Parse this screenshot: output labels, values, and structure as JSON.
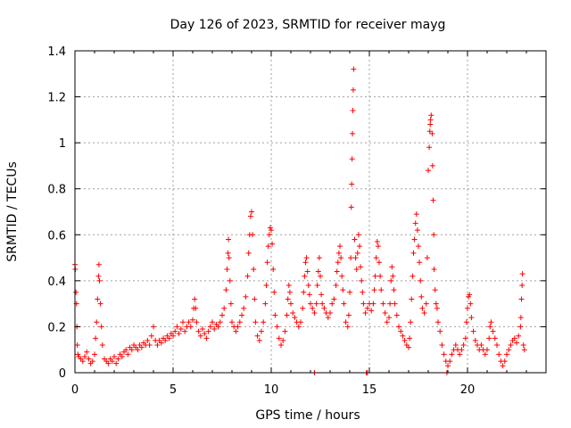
{
  "chart_data": {
    "type": "scatter",
    "title": "Day 126 of 2023, SRMTID for receiver mayg",
    "xlabel": "GPS time / hours",
    "ylabel": "SRMTID / TECUs",
    "xlim": [
      0,
      24
    ],
    "ylim": [
      0,
      1.4
    ],
    "xticks": [
      0,
      5,
      10,
      15,
      20
    ],
    "xtick_labels": [
      "0",
      "5",
      "10",
      "15",
      "20"
    ],
    "yticks": [
      0,
      0.2,
      0.4,
      0.6,
      0.8,
      1,
      1.2,
      1.4
    ],
    "ytick_labels": [
      "0",
      "0.2",
      "0.4",
      "0.6",
      "0.8",
      "1",
      "1.2",
      "1.4"
    ],
    "grid": true,
    "marker": "+",
    "color": "#ff0000",
    "series": [
      {
        "name": "SRMTID",
        "points": [
          [
            0.0,
            0.47
          ],
          [
            0.02,
            0.45
          ],
          [
            0.05,
            0.35
          ],
          [
            0.08,
            0.3
          ],
          [
            0.1,
            0.2
          ],
          [
            0.12,
            0.12
          ],
          [
            0.15,
            0.08
          ],
          [
            0.2,
            0.07
          ],
          [
            0.3,
            0.06
          ],
          [
            0.4,
            0.05
          ],
          [
            0.5,
            0.07
          ],
          [
            0.6,
            0.09
          ],
          [
            0.7,
            0.06
          ],
          [
            0.8,
            0.04
          ],
          [
            0.9,
            0.05
          ],
          [
            1.0,
            0.08
          ],
          [
            1.05,
            0.15
          ],
          [
            1.1,
            0.22
          ],
          [
            1.15,
            0.32
          ],
          [
            1.2,
            0.42
          ],
          [
            1.22,
            0.47
          ],
          [
            1.25,
            0.4
          ],
          [
            1.3,
            0.3
          ],
          [
            1.35,
            0.2
          ],
          [
            1.4,
            0.12
          ],
          [
            1.5,
            0.06
          ],
          [
            1.6,
            0.05
          ],
          [
            1.7,
            0.04
          ],
          [
            1.8,
            0.06
          ],
          [
            1.9,
            0.05
          ],
          [
            2.0,
            0.07
          ],
          [
            2.1,
            0.04
          ],
          [
            2.2,
            0.06
          ],
          [
            2.3,
            0.08
          ],
          [
            2.4,
            0.07
          ],
          [
            2.5,
            0.09
          ],
          [
            2.6,
            0.1
          ],
          [
            2.7,
            0.08
          ],
          [
            2.8,
            0.11
          ],
          [
            2.9,
            0.1
          ],
          [
            3.0,
            0.12
          ],
          [
            3.1,
            0.11
          ],
          [
            3.2,
            0.1
          ],
          [
            3.3,
            0.12
          ],
          [
            3.4,
            0.11
          ],
          [
            3.5,
            0.13
          ],
          [
            3.6,
            0.12
          ],
          [
            3.7,
            0.14
          ],
          [
            3.8,
            0.12
          ],
          [
            3.9,
            0.16
          ],
          [
            4.0,
            0.2
          ],
          [
            4.1,
            0.14
          ],
          [
            4.2,
            0.12
          ],
          [
            4.3,
            0.14
          ],
          [
            4.4,
            0.13
          ],
          [
            4.5,
            0.15
          ],
          [
            4.6,
            0.14
          ],
          [
            4.7,
            0.16
          ],
          [
            4.8,
            0.15
          ],
          [
            4.9,
            0.17
          ],
          [
            5.0,
            0.16
          ],
          [
            5.1,
            0.18
          ],
          [
            5.2,
            0.2
          ],
          [
            5.3,
            0.17
          ],
          [
            5.4,
            0.19
          ],
          [
            5.5,
            0.22
          ],
          [
            5.6,
            0.18
          ],
          [
            5.7,
            0.2
          ],
          [
            5.8,
            0.22
          ],
          [
            5.9,
            0.2
          ],
          [
            6.0,
            0.23
          ],
          [
            6.05,
            0.28
          ],
          [
            6.1,
            0.32
          ],
          [
            6.15,
            0.28
          ],
          [
            6.2,
            0.22
          ],
          [
            6.3,
            0.18
          ],
          [
            6.4,
            0.16
          ],
          [
            6.5,
            0.19
          ],
          [
            6.6,
            0.17
          ],
          [
            6.7,
            0.15
          ],
          [
            6.8,
            0.18
          ],
          [
            6.9,
            0.2
          ],
          [
            7.0,
            0.22
          ],
          [
            7.1,
            0.19
          ],
          [
            7.2,
            0.21
          ],
          [
            7.3,
            0.2
          ],
          [
            7.4,
            0.22
          ],
          [
            7.5,
            0.25
          ],
          [
            7.6,
            0.28
          ],
          [
            7.7,
            0.36
          ],
          [
            7.75,
            0.45
          ],
          [
            7.8,
            0.52
          ],
          [
            7.82,
            0.58
          ],
          [
            7.85,
            0.5
          ],
          [
            7.9,
            0.4
          ],
          [
            7.95,
            0.3
          ],
          [
            8.0,
            0.22
          ],
          [
            8.1,
            0.2
          ],
          [
            8.2,
            0.18
          ],
          [
            8.3,
            0.2
          ],
          [
            8.4,
            0.22
          ],
          [
            8.5,
            0.25
          ],
          [
            8.6,
            0.28
          ],
          [
            8.7,
            0.33
          ],
          [
            8.8,
            0.42
          ],
          [
            8.85,
            0.52
          ],
          [
            8.9,
            0.6
          ],
          [
            8.95,
            0.68
          ],
          [
            9.0,
            0.7
          ],
          [
            9.05,
            0.6
          ],
          [
            9.1,
            0.45
          ],
          [
            9.15,
            0.32
          ],
          [
            9.2,
            0.22
          ],
          [
            9.3,
            0.16
          ],
          [
            9.4,
            0.14
          ],
          [
            9.5,
            0.18
          ],
          [
            9.6,
            0.22
          ],
          [
            9.7,
            0.3
          ],
          [
            9.75,
            0.38
          ],
          [
            9.8,
            0.48
          ],
          [
            9.85,
            0.55
          ],
          [
            9.9,
            0.6
          ],
          [
            9.95,
            0.63
          ],
          [
            10.0,
            0.62
          ],
          [
            10.05,
            0.56
          ],
          [
            10.1,
            0.45
          ],
          [
            10.15,
            0.35
          ],
          [
            10.2,
            0.25
          ],
          [
            10.3,
            0.2
          ],
          [
            10.4,
            0.15
          ],
          [
            10.5,
            0.12
          ],
          [
            10.6,
            0.14
          ],
          [
            10.7,
            0.18
          ],
          [
            10.8,
            0.25
          ],
          [
            10.85,
            0.32
          ],
          [
            10.9,
            0.38
          ],
          [
            10.95,
            0.35
          ],
          [
            11.0,
            0.3
          ],
          [
            11.1,
            0.26
          ],
          [
            11.2,
            0.24
          ],
          [
            11.3,
            0.22
          ],
          [
            11.4,
            0.2
          ],
          [
            11.5,
            0.22
          ],
          [
            11.6,
            0.28
          ],
          [
            11.65,
            0.35
          ],
          [
            11.7,
            0.42
          ],
          [
            11.75,
            0.48
          ],
          [
            11.8,
            0.5
          ],
          [
            11.85,
            0.44
          ],
          [
            11.9,
            0.38
          ],
          [
            11.95,
            0.34
          ],
          [
            12.0,
            0.3
          ],
          [
            12.1,
            0.28
          ],
          [
            12.2,
            0.26
          ],
          [
            12.3,
            0.3
          ],
          [
            12.35,
            0.38
          ],
          [
            12.4,
            0.44
          ],
          [
            12.45,
            0.5
          ],
          [
            12.5,
            0.42
          ],
          [
            12.55,
            0.34
          ],
          [
            12.6,
            0.3
          ],
          [
            12.7,
            0.28
          ],
          [
            12.8,
            0.26
          ],
          [
            12.9,
            0.24
          ],
          [
            13.0,
            0.26
          ],
          [
            13.1,
            0.3
          ],
          [
            13.2,
            0.32
          ],
          [
            13.3,
            0.38
          ],
          [
            13.35,
            0.44
          ],
          [
            13.4,
            0.48
          ],
          [
            13.45,
            0.52
          ],
          [
            13.5,
            0.55
          ],
          [
            13.55,
            0.5
          ],
          [
            13.6,
            0.42
          ],
          [
            13.65,
            0.36
          ],
          [
            13.7,
            0.3
          ],
          [
            13.8,
            0.22
          ],
          [
            13.9,
            0.2
          ],
          [
            13.95,
            0.25
          ],
          [
            14.0,
            0.35
          ],
          [
            14.05,
            0.5
          ],
          [
            14.08,
            0.72
          ],
          [
            14.1,
            0.82
          ],
          [
            14.12,
            0.93
          ],
          [
            14.14,
            1.04
          ],
          [
            14.16,
            1.14
          ],
          [
            14.18,
            1.23
          ],
          [
            14.2,
            1.32
          ],
          [
            14.25,
            0.58
          ],
          [
            14.3,
            0.5
          ],
          [
            14.35,
            0.45
          ],
          [
            14.4,
            0.52
          ],
          [
            14.45,
            0.6
          ],
          [
            14.5,
            0.55
          ],
          [
            14.55,
            0.46
          ],
          [
            14.6,
            0.4
          ],
          [
            14.65,
            0.35
          ],
          [
            14.7,
            0.3
          ],
          [
            14.8,
            0.26
          ],
          [
            14.9,
            0.28
          ],
          [
            15.0,
            0.3
          ],
          [
            15.1,
            0.27
          ],
          [
            15.2,
            0.3
          ],
          [
            15.25,
            0.36
          ],
          [
            15.3,
            0.42
          ],
          [
            15.35,
            0.5
          ],
          [
            15.4,
            0.57
          ],
          [
            15.45,
            0.55
          ],
          [
            15.5,
            0.48
          ],
          [
            15.55,
            0.42
          ],
          [
            15.6,
            0.36
          ],
          [
            15.7,
            0.3
          ],
          [
            15.8,
            0.26
          ],
          [
            15.9,
            0.22
          ],
          [
            16.0,
            0.24
          ],
          [
            16.05,
            0.3
          ],
          [
            16.1,
            0.4
          ],
          [
            16.15,
            0.46
          ],
          [
            16.2,
            0.42
          ],
          [
            16.25,
            0.36
          ],
          [
            16.3,
            0.3
          ],
          [
            16.4,
            0.25
          ],
          [
            16.5,
            0.2
          ],
          [
            16.6,
            0.18
          ],
          [
            16.7,
            0.16
          ],
          [
            16.8,
            0.14
          ],
          [
            16.9,
            0.12
          ],
          [
            17.0,
            0.11
          ],
          [
            17.05,
            0.15
          ],
          [
            17.1,
            0.22
          ],
          [
            17.15,
            0.32
          ],
          [
            17.2,
            0.42
          ],
          [
            17.25,
            0.52
          ],
          [
            17.3,
            0.58
          ],
          [
            17.35,
            0.65
          ],
          [
            17.4,
            0.69
          ],
          [
            17.45,
            0.62
          ],
          [
            17.5,
            0.55
          ],
          [
            17.55,
            0.48
          ],
          [
            17.6,
            0.4
          ],
          [
            17.65,
            0.33
          ],
          [
            17.7,
            0.28
          ],
          [
            17.8,
            0.26
          ],
          [
            17.9,
            0.3
          ],
          [
            17.95,
            0.5
          ],
          [
            18.0,
            0.88
          ],
          [
            18.05,
            0.98
          ],
          [
            18.08,
            1.05
          ],
          [
            18.1,
            1.08
          ],
          [
            18.12,
            1.1
          ],
          [
            18.15,
            1.12
          ],
          [
            18.2,
            1.04
          ],
          [
            18.22,
            0.9
          ],
          [
            18.25,
            0.75
          ],
          [
            18.28,
            0.6
          ],
          [
            18.3,
            0.45
          ],
          [
            18.35,
            0.36
          ],
          [
            18.4,
            0.3
          ],
          [
            18.45,
            0.28
          ],
          [
            18.5,
            0.22
          ],
          [
            18.6,
            0.18
          ],
          [
            18.7,
            0.12
          ],
          [
            18.8,
            0.08
          ],
          [
            18.9,
            0.05
          ],
          [
            19.0,
            0.03
          ],
          [
            19.1,
            0.05
          ],
          [
            19.2,
            0.08
          ],
          [
            19.3,
            0.1
          ],
          [
            19.4,
            0.12
          ],
          [
            19.5,
            0.1
          ],
          [
            19.6,
            0.08
          ],
          [
            19.7,
            0.1
          ],
          [
            19.8,
            0.12
          ],
          [
            19.9,
            0.15
          ],
          [
            19.95,
            0.22
          ],
          [
            20.0,
            0.28
          ],
          [
            20.05,
            0.33
          ],
          [
            20.1,
            0.34
          ],
          [
            20.15,
            0.3
          ],
          [
            20.2,
            0.24
          ],
          [
            20.3,
            0.18
          ],
          [
            20.4,
            0.14
          ],
          [
            20.5,
            0.12
          ],
          [
            20.6,
            0.1
          ],
          [
            20.7,
            0.12
          ],
          [
            20.8,
            0.1
          ],
          [
            20.9,
            0.08
          ],
          [
            21.0,
            0.1
          ],
          [
            21.1,
            0.15
          ],
          [
            21.15,
            0.2
          ],
          [
            21.2,
            0.22
          ],
          [
            21.3,
            0.18
          ],
          [
            21.4,
            0.15
          ],
          [
            21.5,
            0.12
          ],
          [
            21.6,
            0.08
          ],
          [
            21.7,
            0.05
          ],
          [
            21.8,
            0.03
          ],
          [
            21.9,
            0.05
          ],
          [
            22.0,
            0.08
          ],
          [
            22.1,
            0.1
          ],
          [
            22.2,
            0.12
          ],
          [
            22.3,
            0.14
          ],
          [
            22.4,
            0.15
          ],
          [
            22.5,
            0.13
          ],
          [
            22.6,
            0.16
          ],
          [
            22.7,
            0.2
          ],
          [
            22.72,
            0.24
          ],
          [
            22.75,
            0.32
          ],
          [
            22.78,
            0.38
          ],
          [
            22.8,
            0.43
          ],
          [
            22.85,
            0.12
          ],
          [
            22.9,
            0.1
          ],
          [
            12.2,
            0.0
          ],
          [
            14.85,
            0.0
          ],
          [
            14.9,
            0.0
          ],
          [
            18.95,
            0.0
          ]
        ]
      }
    ]
  }
}
